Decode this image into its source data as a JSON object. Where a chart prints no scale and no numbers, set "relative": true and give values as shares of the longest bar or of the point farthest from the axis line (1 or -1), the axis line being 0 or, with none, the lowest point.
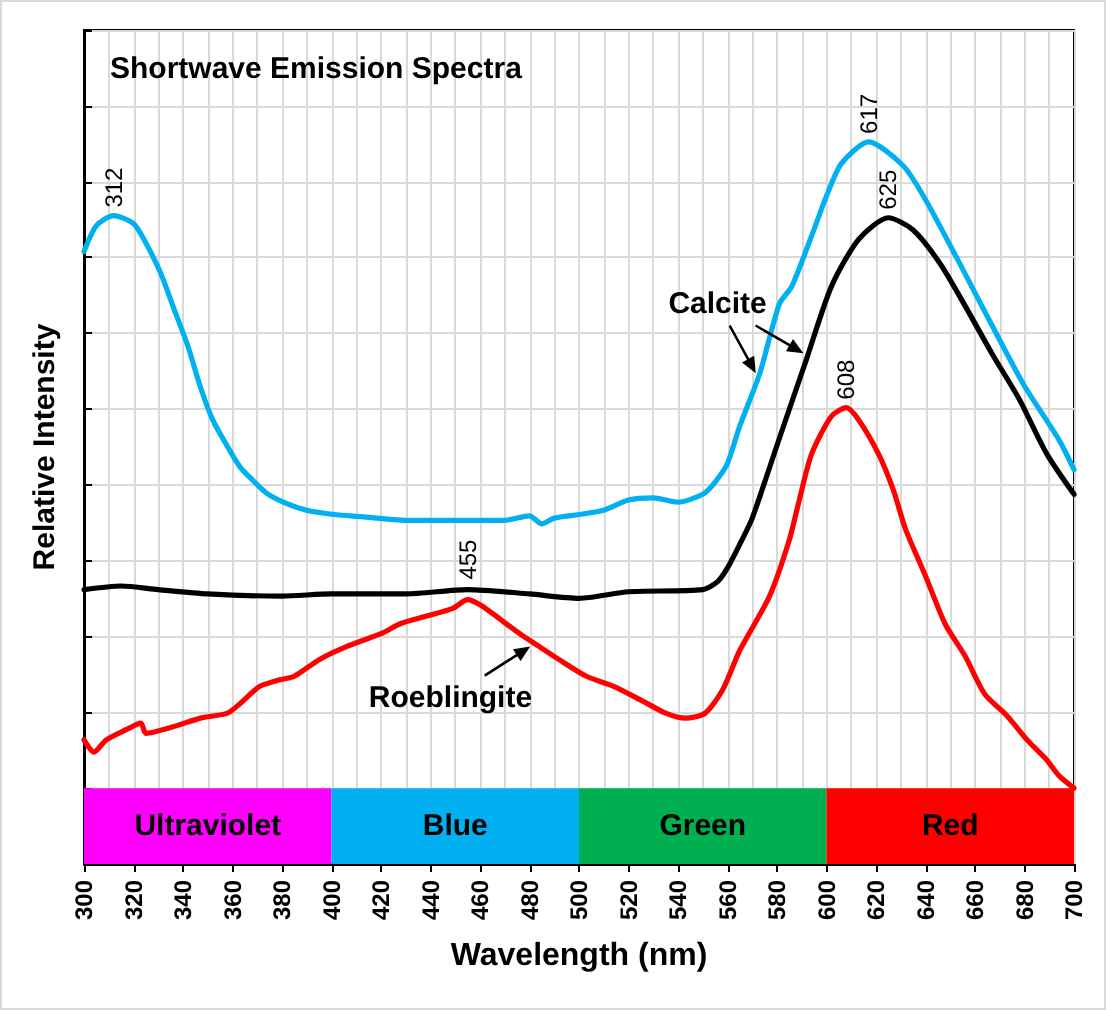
{
  "chart_data": {
    "type": "line",
    "title": "Shortwave Emission Spectra",
    "xlabel": "Wavelength (nm)",
    "ylabel": "Relative Intensity",
    "relative": true,
    "xlim": [
      300,
      700
    ],
    "xticks": [
      300,
      320,
      340,
      360,
      380,
      400,
      420,
      440,
      460,
      480,
      500,
      520,
      540,
      560,
      580,
      600,
      620,
      640,
      660,
      680,
      700
    ],
    "grid": true,
    "marker": "none",
    "series": [
      {
        "name": "Calcite",
        "color": "#00b0f0",
        "x": [
          300,
          305,
          312,
          320,
          325,
          331,
          336,
          342,
          347,
          352,
          358,
          363,
          368,
          374,
          382,
          390,
          401,
          412,
          430,
          450,
          470,
          480,
          485,
          490,
          500,
          510,
          520,
          530,
          540,
          550,
          555,
          560,
          565,
          573,
          581,
          586,
          594,
          600,
          606,
          617,
          631,
          640,
          653,
          667,
          680,
          694,
          700
        ],
        "values": [
          0.848,
          0.884,
          0.898,
          0.887,
          0.86,
          0.818,
          0.772,
          0.717,
          0.661,
          0.615,
          0.578,
          0.55,
          0.532,
          0.513,
          0.499,
          0.49,
          0.484,
          0.481,
          0.476,
          0.476,
          0.476,
          0.482,
          0.471,
          0.479,
          0.484,
          0.49,
          0.504,
          0.507,
          0.501,
          0.512,
          0.529,
          0.555,
          0.607,
          0.679,
          0.776,
          0.8,
          0.87,
          0.925,
          0.97,
          1.0,
          0.967,
          0.92,
          0.837,
          0.745,
          0.662,
          0.587,
          0.546
        ]
      },
      {
        "color": "#000000",
        "x": [
          300,
          315,
          330,
          350,
          380,
          400,
          430,
          455,
          480,
          500,
          520,
          550,
          556,
          560,
          565,
          570,
          581,
          592,
          602,
          613,
          625,
          635,
          646,
          656,
          667,
          678,
          689,
          700
        ],
        "values": [
          0.38,
          0.385,
          0.38,
          0.374,
          0.371,
          0.374,
          0.374,
          0.38,
          0.374,
          0.368,
          0.377,
          0.38,
          0.391,
          0.41,
          0.443,
          0.479,
          0.59,
          0.7,
          0.8,
          0.865,
          0.895,
          0.878,
          0.831,
          0.773,
          0.706,
          0.643,
          0.568,
          0.512
        ]
      },
      {
        "color": "#ff0000",
        "x": [
          300,
          304,
          309,
          317,
          323,
          325,
          336,
          347,
          358,
          363,
          371,
          379,
          385,
          395,
          406,
          420,
          428,
          438,
          449,
          455,
          460,
          465,
          476,
          484,
          492,
          503,
          514,
          525,
          535,
          543,
          551,
          558,
          565,
          577,
          585,
          589,
          594,
          602,
          608,
          613,
          621,
          627,
          632,
          640,
          648,
          656,
          664,
          673,
          681,
          689,
          694,
          700
        ],
        "values": [
          0.172,
          0.155,
          0.172,
          0.186,
          0.195,
          0.181,
          0.19,
          0.202,
          0.209,
          0.222,
          0.246,
          0.255,
          0.26,
          0.283,
          0.301,
          0.319,
          0.333,
          0.343,
          0.354,
          0.366,
          0.359,
          0.347,
          0.319,
          0.301,
          0.283,
          0.26,
          0.246,
          0.227,
          0.209,
          0.202,
          0.209,
          0.241,
          0.296,
          0.371,
          0.449,
          0.504,
          0.568,
          0.62,
          0.632,
          0.615,
          0.568,
          0.518,
          0.463,
          0.399,
          0.332,
          0.288,
          0.235,
          0.205,
          0.172,
          0.144,
          0.122,
          0.105
        ]
      }
    ],
    "bands": [
      {
        "axis": "x",
        "from": 300,
        "to": 400,
        "label": "Ultraviolet",
        "color": "#ff00ff"
      },
      {
        "axis": "x",
        "from": 400,
        "to": 500,
        "label": "Blue",
        "color": "#00b0f0"
      },
      {
        "axis": "x",
        "from": 500,
        "to": 600,
        "label": "Green",
        "color": "#00b050"
      },
      {
        "axis": "x",
        "from": 600,
        "to": 700,
        "label": "Red",
        "color": "#ff0000"
      }
    ],
    "annotations": [
      {
        "text": "312",
        "x": 312,
        "y": 0.898
      },
      {
        "text": "455",
        "x": 455,
        "y": 0.366
      },
      {
        "text": "617",
        "x": 617,
        "y": 1.0
      },
      {
        "text": "625",
        "x": 625,
        "y": 0.895
      },
      {
        "text": "608",
        "x": 608,
        "y": 0.632
      },
      {
        "text": "Roeblingite",
        "x": 482,
        "y": 0.305
      }
    ]
  }
}
